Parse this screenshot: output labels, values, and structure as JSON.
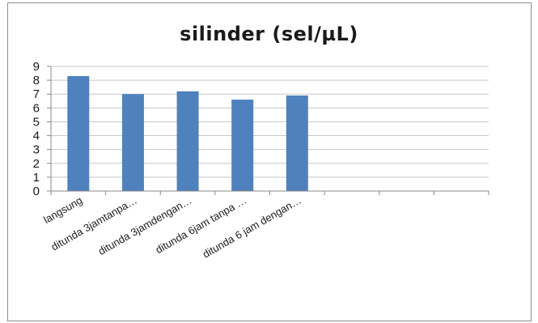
{
  "chart_data": {
    "type": "bar",
    "title": "silinder  (sel/µL)",
    "categories": [
      "langsung",
      "ditunda 3jamtanpa…",
      "ditunda 3jamdengan…",
      "ditunda 6jam tanpa …",
      "ditunda 6 jam dengan…",
      "",
      "",
      ""
    ],
    "values": [
      8.3,
      7.0,
      7.2,
      6.6,
      6.9,
      null,
      null,
      null
    ],
    "ylim": [
      0,
      9
    ],
    "y_ticks": [
      "0",
      "1",
      "2",
      "3",
      "4",
      "5",
      "6",
      "7",
      "8",
      "9"
    ],
    "xlabel": "",
    "ylabel": "",
    "grid": true,
    "legend": "none",
    "bar_color": "#4f81bd",
    "grid_color": "#c8c8c8"
  }
}
